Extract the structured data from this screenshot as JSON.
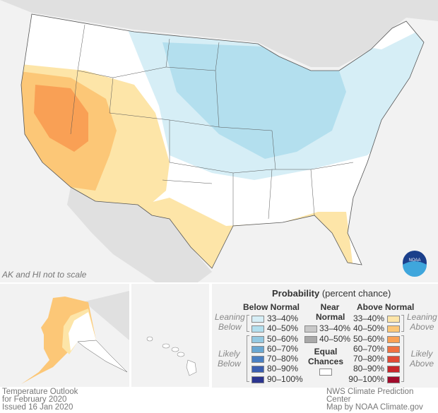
{
  "map": {
    "scale_note": "AK and HI not to scale",
    "logo_text": "NOAA",
    "colors": {
      "background": "#f2f2f2",
      "neighbor_land": "#e0e0e0",
      "us_land": "#ffffff"
    }
  },
  "legend": {
    "title": "Probability",
    "title_suffix": "(percent chance)",
    "below": {
      "heading": "Below Normal",
      "leaning_label": [
        "Leaning",
        "Below"
      ],
      "likely_label": [
        "Likely",
        "Below"
      ],
      "items": [
        {
          "label": "33–40%",
          "color": "#d6eef6"
        },
        {
          "label": "40–50%",
          "color": "#b3dfee"
        },
        {
          "label": "50–60%",
          "color": "#94c9e2"
        },
        {
          "label": "60–70%",
          "color": "#6aa7d2"
        },
        {
          "label": "70–80%",
          "color": "#4a7fc2"
        },
        {
          "label": "80–90%",
          "color": "#3a5eb0"
        },
        {
          "label": "90–100%",
          "color": "#2b3590"
        }
      ]
    },
    "near": {
      "heading": [
        "Near",
        "Normal"
      ],
      "items": [
        {
          "label": "33–40%",
          "color": "#c8c8c8"
        },
        {
          "label": "40–50%",
          "color": "#a8a8a8"
        }
      ]
    },
    "equal": {
      "heading": [
        "Equal",
        "Chances"
      ],
      "color": "#ffffff"
    },
    "above": {
      "heading": "Above Normal",
      "leaning_label": [
        "Leaning",
        "Above"
      ],
      "likely_label": [
        "Likely",
        "Above"
      ],
      "items": [
        {
          "label": "33–40%",
          "color": "#fde5a8"
        },
        {
          "label": "40–50%",
          "color": "#fcc777"
        },
        {
          "label": "50–60%",
          "color": "#f9a055"
        },
        {
          "label": "60–70%",
          "color": "#ef7142"
        },
        {
          "label": "70–80%",
          "color": "#e04a35"
        },
        {
          "label": "80–90%",
          "color": "#c8262a"
        },
        {
          "label": "90–100%",
          "color": "#a10b2b"
        }
      ]
    }
  },
  "footer": {
    "left": [
      "Temperature Outlook",
      "for February 2020",
      "Issued 16 Jan 2020"
    ],
    "right": [
      "NWS Climate Prediction Center",
      "Map by NOAA Climate.gov"
    ]
  }
}
